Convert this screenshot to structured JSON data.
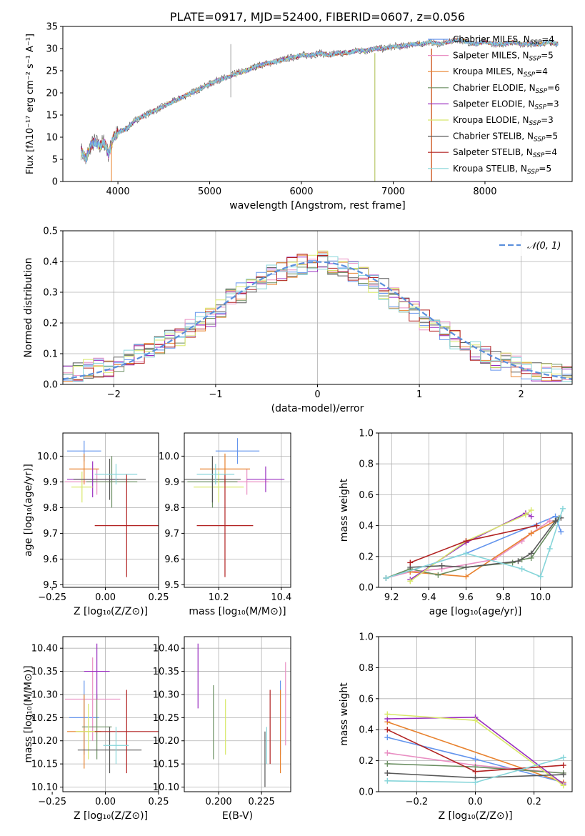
{
  "colors": [
    "#6495ed",
    "#e98fc3",
    "#e8822e",
    "#6b8f62",
    "#9a2fc0",
    "#d8e86a",
    "#585858",
    "#b22222",
    "#86d5d9"
  ],
  "chart_data": [
    {
      "id": "spectrum",
      "type": "line",
      "title": "PLATE=0917, MJD=52400, FIBERID=0607, z=0.056",
      "xlabel": "wavelength [Angstrom, rest frame]",
      "ylabel": "Flux [fλ10⁻¹⁷ erg cm⁻² s⁻¹ A⁻¹]",
      "xlim": [
        3400,
        8950
      ],
      "ylim": [
        0,
        35
      ],
      "xticks": [
        "4000",
        "5000",
        "6000",
        "7000",
        "8000"
      ],
      "yticks": [
        "0",
        "5",
        "10",
        "15",
        "20",
        "25",
        "30",
        "35"
      ],
      "grid": false,
      "legend": "upper-right",
      "x": [
        3600,
        3650,
        3700,
        3750,
        3800,
        3850,
        3900,
        3950,
        4000,
        4100,
        4200,
        4300,
        4400,
        4500,
        4600,
        4700,
        4800,
        4900,
        5000,
        5100,
        5200,
        5300,
        5400,
        5500,
        5600,
        5700,
        5800,
        5900,
        6000,
        6100,
        6200,
        6300,
        6400,
        6500,
        6600,
        6700,
        6800,
        6900,
        7000,
        7100,
        7200,
        7300,
        7400,
        7500,
        7600,
        7700,
        7800,
        7900,
        8000,
        8100,
        8200,
        8300,
        8400,
        8500,
        8600,
        8700,
        8800
      ],
      "y": [
        7,
        5,
        8,
        9,
        8,
        9,
        6,
        10,
        11,
        12,
        14,
        15,
        16,
        17,
        18,
        19,
        20,
        21,
        22,
        23,
        23.5,
        24.5,
        25,
        26,
        26.5,
        27,
        27.5,
        28,
        28.5,
        28.5,
        29,
        28.5,
        29,
        29,
        29.5,
        29.5,
        30,
        30,
        30.5,
        30.5,
        31,
        31,
        31.5,
        31,
        31.5,
        32,
        31.5,
        31,
        31.5,
        31,
        31,
        31.5,
        31,
        31,
        31,
        31.5,
        31
      ],
      "series": [
        {
          "name": "Chabrier MILES, N_SSP=4"
        },
        {
          "name": "Salpeter MILES, N_SSP=5"
        },
        {
          "name": "Kroupa MILES, N_SSP=4"
        },
        {
          "name": "Chabrier ELODIE, N_SSP=6"
        },
        {
          "name": "Salpeter ELODIE, N_SSP=3"
        },
        {
          "name": "Kroupa ELODIE, N_SSP=3"
        },
        {
          "name": "Chabrier STELIB, N_SSP=5"
        },
        {
          "name": "Salpeter STELIB, N_SSP=4"
        },
        {
          "name": "Kroupa STELIB, N_SSP=5"
        }
      ]
    },
    {
      "id": "residuals",
      "type": "line",
      "xlabel": "(data-model)/error",
      "ylabel": "Normed distribution",
      "xlim": [
        -2.5,
        2.5
      ],
      "ylim": [
        0,
        0.5
      ],
      "xticks": [
        "−2",
        "−1",
        "0",
        "1",
        "2"
      ],
      "yticks": [
        "0.0",
        "0.1",
        "0.2",
        "0.3",
        "0.4",
        "0.5"
      ],
      "grid": true,
      "legend": "upper-right",
      "reference_label": "𝒩(0, 1)",
      "bins": [
        -2.5,
        -2.4,
        -2.3,
        -2.2,
        -2.1,
        -2.0,
        -1.9,
        -1.8,
        -1.7,
        -1.6,
        -1.5,
        -1.4,
        -1.3,
        -1.2,
        -1.1,
        -1.0,
        -0.9,
        -0.8,
        -0.7,
        -0.6,
        -0.5,
        -0.4,
        -0.3,
        -0.2,
        -0.1,
        0.0,
        0.1,
        0.2,
        0.3,
        0.4,
        0.5,
        0.6,
        0.7,
        0.8,
        0.9,
        1.0,
        1.1,
        1.2,
        1.3,
        1.4,
        1.5,
        1.6,
        1.7,
        1.8,
        1.9,
        2.0,
        2.1,
        2.2,
        2.3,
        2.4
      ],
      "base": [
        0.035,
        0.04,
        0.05,
        0.055,
        0.06,
        0.07,
        0.09,
        0.1,
        0.11,
        0.13,
        0.15,
        0.16,
        0.18,
        0.2,
        0.22,
        0.25,
        0.28,
        0.3,
        0.32,
        0.34,
        0.36,
        0.37,
        0.38,
        0.39,
        0.4,
        0.4,
        0.39,
        0.38,
        0.37,
        0.35,
        0.33,
        0.31,
        0.28,
        0.26,
        0.24,
        0.21,
        0.19,
        0.17,
        0.15,
        0.13,
        0.11,
        0.09,
        0.08,
        0.07,
        0.06,
        0.05,
        0.045,
        0.04,
        0.035,
        0.03
      ]
    },
    {
      "id": "age-vs-Z",
      "type": "scatter",
      "xlabel": "Z [log₁₀(Z/Z⊙)]",
      "ylabel": "age  [log₁₀(age/yr)]",
      "xlim": [
        -0.2,
        0.25
      ],
      "ylim": [
        9.49,
        10.09
      ],
      "xticks": [
        "−0.25",
        "0.00",
        "0.25"
      ],
      "yticks": [
        "9.5",
        "9.6",
        "9.7",
        "9.8",
        "9.9",
        "10.0"
      ],
      "grid": true,
      "points": [
        {
          "x": -0.1,
          "xerr": 0.08,
          "y": 10.02,
          "yerr": 0.04
        },
        {
          "x": -0.04,
          "xerr": 0.15,
          "y": 9.9,
          "yerr": 0.05
        },
        {
          "x": -0.1,
          "xerr": 0.07,
          "y": 9.95,
          "yerr": 0.06
        },
        {
          "x": 0.03,
          "xerr": 0.12,
          "y": 9.9,
          "yerr": 0.1
        },
        {
          "x": -0.06,
          "xerr": 0.12,
          "y": 9.91,
          "yerr": 0.07
        },
        {
          "x": -0.11,
          "xerr": 0.05,
          "y": 9.88,
          "yerr": 0.06
        },
        {
          "x": 0.02,
          "xerr": 0.17,
          "y": 9.91,
          "yerr": 0.08
        },
        {
          "x": 0.1,
          "xerr": 0.15,
          "y": 9.73,
          "yerr": 0.2
        },
        {
          "x": 0.05,
          "xerr": 0.1,
          "y": 9.93,
          "yerr": 0.04
        }
      ]
    },
    {
      "id": "age-vs-mass",
      "type": "scatter",
      "xlabel": "mass [log₁₀(M/M⊙)]",
      "ylabel": "",
      "xlim": [
        10.09,
        10.43
      ],
      "ylim": [
        9.49,
        10.09
      ],
      "xticks": [
        "10.2",
        "10.4"
      ],
      "yticks": [
        "9.5",
        "9.6",
        "9.7",
        "9.8",
        "9.9",
        "10.0"
      ],
      "grid": true,
      "points": [
        {
          "x": 10.26,
          "xerr": 0.07,
          "y": 10.02,
          "yerr": 0.05
        },
        {
          "x": 10.29,
          "xerr": 0.07,
          "y": 9.9,
          "yerr": 0.05
        },
        {
          "x": 10.22,
          "xerr": 0.08,
          "y": 9.95,
          "yerr": 0.06
        },
        {
          "x": 10.18,
          "xerr": 0.08,
          "y": 9.9,
          "yerr": 0.1
        },
        {
          "x": 10.35,
          "xerr": 0.06,
          "y": 9.91,
          "yerr": 0.05
        },
        {
          "x": 10.2,
          "xerr": 0.08,
          "y": 9.88,
          "yerr": 0.06
        },
        {
          "x": 10.18,
          "xerr": 0.09,
          "y": 9.91,
          "yerr": 0.09
        },
        {
          "x": 10.22,
          "xerr": 0.09,
          "y": 9.73,
          "yerr": 0.2
        },
        {
          "x": 10.19,
          "xerr": 0.06,
          "y": 9.93,
          "yerr": 0.04
        }
      ]
    },
    {
      "id": "weight-vs-age",
      "type": "line",
      "xlabel": "age  [log₁₀(age/yr)]",
      "ylabel": "mass weight",
      "xlim": [
        9.13,
        10.17
      ],
      "ylim": [
        0,
        1
      ],
      "xticks": [
        "9.2",
        "9.4",
        "9.6",
        "9.8",
        "10.0"
      ],
      "yticks": [
        "0.0",
        "0.2",
        "0.4",
        "0.6",
        "0.8",
        "1.0"
      ],
      "grid": true,
      "series": [
        {
          "x": [
            9.17,
            9.6,
            10.08,
            10.11
          ],
          "y": [
            0.06,
            0.22,
            0.46,
            0.36
          ]
        },
        {
          "x": [
            9.17,
            9.3,
            9.47,
            9.75,
            9.9,
            9.95,
            10.05
          ],
          "y": [
            0.06,
            0.1,
            0.12,
            0.18,
            0.3,
            0.35,
            0.43
          ]
        },
        {
          "x": [
            9.3,
            9.6,
            9.95,
            10.08
          ],
          "y": [
            0.1,
            0.07,
            0.35,
            0.43
          ]
        },
        {
          "x": [
            9.17,
            9.3,
            9.45,
            9.6,
            9.85,
            9.9,
            9.95,
            10.1
          ],
          "y": [
            0.06,
            0.12,
            0.08,
            0.13,
            0.16,
            0.18,
            0.19,
            0.45
          ]
        },
        {
          "x": [
            9.3,
            9.6,
            9.92,
            9.95
          ],
          "y": [
            0.05,
            0.29,
            0.48,
            0.46
          ]
        },
        {
          "x": [
            9.3,
            9.6,
            9.92,
            9.95
          ],
          "y": [
            0.04,
            0.3,
            0.47,
            0.5
          ]
        },
        {
          "x": [
            9.3,
            9.47,
            9.6,
            9.88,
            9.95,
            10.08,
            10.11
          ],
          "y": [
            0.13,
            0.14,
            0.13,
            0.17,
            0.22,
            0.43,
            0.45
          ]
        },
        {
          "x": [
            9.3,
            9.6,
            9.98
          ],
          "y": [
            0.16,
            0.3,
            0.4
          ]
        },
        {
          "x": [
            9.17,
            9.6,
            9.9,
            10.0,
            10.05,
            10.12
          ],
          "y": [
            0.06,
            0.22,
            0.12,
            0.07,
            0.25,
            0.51
          ]
        }
      ]
    },
    {
      "id": "mass-vs-Z",
      "type": "scatter",
      "xlabel": "Z [log₁₀(Z/Z⊙)]",
      "ylabel": "mass [log₁₀(M/M⊙)]",
      "xlim": [
        -0.2,
        0.25
      ],
      "ylim": [
        10.09,
        10.425
      ],
      "xticks": [
        "−0.25",
        "0.00",
        "0.25"
      ],
      "yticks": [
        "10.10",
        "10.15",
        "10.20",
        "10.25",
        "10.30",
        "10.35",
        "10.40"
      ],
      "grid": true,
      "points": [
        {
          "x": -0.1,
          "xerr": 0.07,
          "y": 10.25,
          "yerr": 0.08
        },
        {
          "x": -0.06,
          "xerr": 0.13,
          "y": 10.29,
          "yerr": 0.09
        },
        {
          "x": -0.1,
          "xerr": 0.08,
          "y": 10.22,
          "yerr": 0.08
        },
        {
          "x": -0.04,
          "xerr": 0.07,
          "y": 10.23,
          "yerr": 0.07
        },
        {
          "x": -0.04,
          "xerr": 0.06,
          "y": 10.35,
          "yerr": 0.06
        },
        {
          "x": -0.08,
          "xerr": 0.06,
          "y": 10.22,
          "yerr": 0.06
        },
        {
          "x": 0.02,
          "xerr": 0.15,
          "y": 10.18,
          "yerr": 0.05
        },
        {
          "x": 0.1,
          "xerr": 0.15,
          "y": 10.22,
          "yerr": 0.09
        },
        {
          "x": 0.05,
          "xerr": 0.06,
          "y": 10.19,
          "yerr": 0.04
        }
      ]
    },
    {
      "id": "mass-vs-EBV",
      "type": "scatter",
      "xlabel": "E(B-V)",
      "ylabel": "",
      "xlim": [
        0.18,
        0.242
      ],
      "ylim": [
        10.09,
        10.425
      ],
      "xticks": [
        "0.200",
        "0.225"
      ],
      "yticks": [
        "10.10",
        "10.15",
        "10.20",
        "10.25",
        "10.30",
        "10.35",
        "10.40"
      ],
      "grid": true,
      "points": [
        {
          "x": 0.236,
          "y": 10.25,
          "yerr": 0.08
        },
        {
          "x": 0.239,
          "y": 10.28,
          "yerr": 0.09
        },
        {
          "x": 0.236,
          "y": 10.22,
          "yerr": 0.09
        },
        {
          "x": 0.197,
          "y": 10.24,
          "yerr": 0.08
        },
        {
          "x": 0.188,
          "y": 10.34,
          "yerr": 0.07
        },
        {
          "x": 0.204,
          "y": 10.23,
          "yerr": 0.06
        },
        {
          "x": 0.227,
          "y": 10.16,
          "yerr": 0.06
        },
        {
          "x": 0.23,
          "y": 10.23,
          "yerr": 0.08
        },
        {
          "x": 0.228,
          "y": 10.19,
          "yerr": 0.04
        }
      ]
    },
    {
      "id": "weight-vs-Z",
      "type": "line",
      "xlabel": "Z [log₁₀(Z/Z⊙)]",
      "ylabel": "mass weight",
      "xlim": [
        -0.33,
        0.33
      ],
      "ylim": [
        0,
        1
      ],
      "xticks": [
        "−0.2",
        "0.0",
        "0.2"
      ],
      "yticks": [
        "0.0",
        "0.2",
        "0.4",
        "0.6",
        "0.8",
        "1.0"
      ],
      "grid": true,
      "series": [
        {
          "x": [
            -0.3,
            0.0,
            0.3
          ],
          "y": [
            0.35,
            0.21,
            0.06
          ]
        },
        {
          "x": [
            -0.3,
            0.0,
            0.3
          ],
          "y": [
            0.25,
            0.17,
            0.12
          ]
        },
        {
          "x": [
            -0.3,
            0.3
          ],
          "y": [
            0.45,
            0.06
          ]
        },
        {
          "x": [
            -0.3,
            0.0,
            0.3
          ],
          "y": [
            0.18,
            0.16,
            0.12
          ]
        },
        {
          "x": [
            -0.3,
            0.0,
            0.3
          ],
          "y": [
            0.47,
            0.48,
            0.05
          ]
        },
        {
          "x": [
            -0.3,
            0.0,
            0.3
          ],
          "y": [
            0.5,
            0.46,
            0.04
          ]
        },
        {
          "x": [
            -0.3,
            0.0,
            0.3
          ],
          "y": [
            0.12,
            0.09,
            0.11
          ]
        },
        {
          "x": [
            -0.3,
            0.0,
            0.3
          ],
          "y": [
            0.4,
            0.13,
            0.17
          ]
        },
        {
          "x": [
            -0.3,
            0.0,
            0.3
          ],
          "y": [
            0.07,
            0.06,
            0.22
          ]
        }
      ]
    }
  ]
}
